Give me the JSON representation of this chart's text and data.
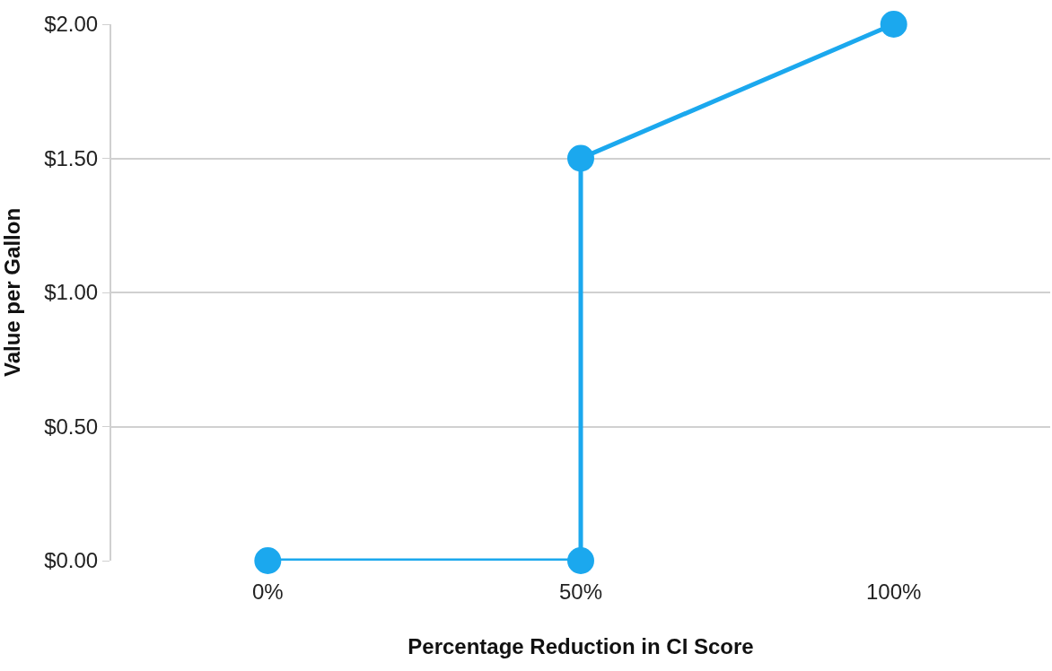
{
  "chart_data": {
    "type": "line",
    "xlabel": "Percentage Reduction in CI Score",
    "ylabel": "Value per Gallon",
    "x": [
      0,
      50,
      50,
      100
    ],
    "series": [
      {
        "color": "#1ba8ee",
        "values": [
          0,
          0,
          1.5,
          2.0
        ]
      }
    ],
    "xlim": [
      -25,
      125
    ],
    "xticks": [
      {
        "value": 0,
        "label": "0%"
      },
      {
        "value": 50,
        "label": "50%"
      },
      {
        "value": 100,
        "label": "100%"
      }
    ],
    "ylim": [
      0,
      2
    ],
    "yticks": [
      {
        "value": 0,
        "label": "$0.00"
      },
      {
        "value": 0.5,
        "label": "$0.50"
      },
      {
        "value": 1,
        "label": "$1.00"
      },
      {
        "value": 1.5,
        "label": "$1.50"
      },
      {
        "value": 2,
        "label": "$2.00"
      }
    ],
    "grid": "y",
    "marker": "circle",
    "line_style": "solid"
  }
}
